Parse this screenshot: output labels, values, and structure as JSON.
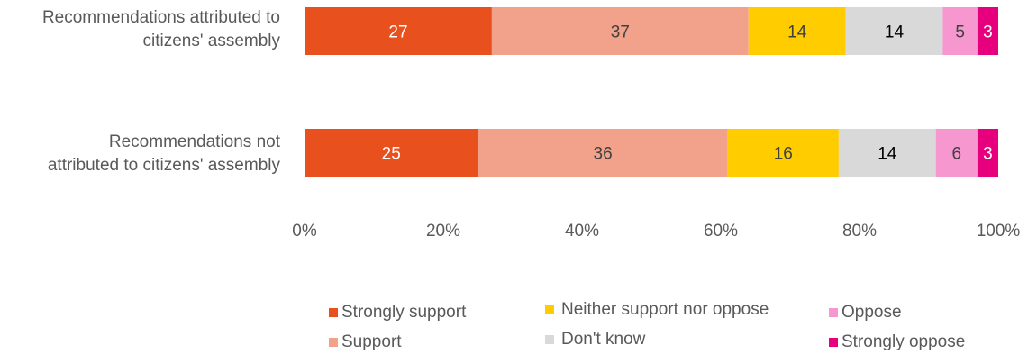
{
  "chart_data": {
    "type": "bar",
    "orientation": "horizontal",
    "stacked": true,
    "categories": [
      "Recommendations attributed to citizens' assembly",
      "Recommendations not attributed to citizens' assembly"
    ],
    "category_lines": [
      [
        "Recommendations attributed to",
        "citizens' assembly"
      ],
      [
        "Recommendations not",
        "attributed to citizens' assembly"
      ]
    ],
    "series": [
      {
        "name": "Strongly support",
        "values": [
          27,
          25
        ],
        "color": "#E8511E",
        "label_color": "#ffffff"
      },
      {
        "name": "Support",
        "values": [
          37,
          36
        ],
        "color": "#F2A28A",
        "label_color": "#404040"
      },
      {
        "name": "Neither support nor oppose",
        "values": [
          14,
          16
        ],
        "color": "#FFCC00",
        "label_color": "#404040"
      },
      {
        "name": "Don't know",
        "values": [
          14,
          14
        ],
        "color": "#D9D9D9",
        "label_color": "#000000"
      },
      {
        "name": "Oppose",
        "values": [
          5,
          6
        ],
        "color": "#F797D0",
        "label_color": "#404040"
      },
      {
        "name": "Strongly oppose",
        "values": [
          3,
          3
        ],
        "color": "#E6007E",
        "label_color": "#ffffff"
      }
    ],
    "xlim": [
      0,
      100
    ],
    "x_ticks": [
      "0%",
      "20%",
      "40%",
      "60%",
      "80%",
      "100%"
    ],
    "grid": false,
    "legend_position": "bottom"
  }
}
